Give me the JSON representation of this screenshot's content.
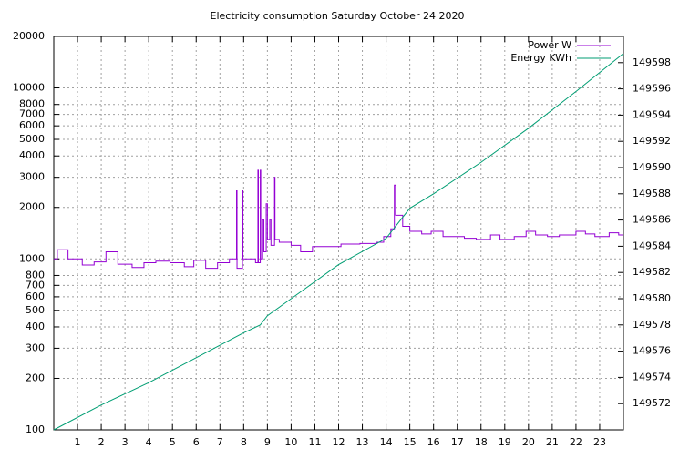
{
  "chart_data": {
    "type": "line",
    "title": "Electricity consumption Saturday October 24 2020",
    "xlim": [
      0,
      24
    ],
    "xticks": [
      1,
      2,
      3,
      4,
      5,
      6,
      7,
      8,
      9,
      10,
      11,
      12,
      13,
      14,
      15,
      16,
      17,
      18,
      19,
      20,
      21,
      22,
      23
    ],
    "ylim": [
      100,
      20000
    ],
    "yticks": [
      100,
      200,
      300,
      400,
      500,
      600,
      700,
      800,
      1000,
      2000,
      3000,
      4000,
      5000,
      6000,
      7000,
      8000,
      10000,
      20000
    ],
    "y_log": true,
    "y2lim": [
      149570,
      149600
    ],
    "y2ticks": [
      149572,
      149574,
      149576,
      149578,
      149580,
      149582,
      149584,
      149586,
      149588,
      149590,
      149592,
      149594,
      149596,
      149598
    ],
    "grid": true,
    "legend": "top-right",
    "series": [
      {
        "name": "Power W",
        "color": "#9400d3",
        "x": [
          0,
          0.15,
          0.15,
          0.6,
          0.6,
          1.2,
          1.2,
          1.7,
          1.7,
          2.2,
          2.2,
          2.7,
          2.7,
          3.3,
          3.3,
          3.8,
          3.8,
          4.3,
          4.3,
          4.9,
          4.9,
          5.5,
          5.5,
          5.9,
          5.9,
          6.4,
          6.4,
          6.9,
          6.9,
          7.4,
          7.4,
          7.7,
          7.7,
          7.72,
          7.72,
          7.95,
          7.95,
          7.97,
          7.97,
          8.5,
          8.5,
          8.6,
          8.6,
          8.62,
          8.62,
          8.7,
          8.7,
          8.72,
          8.72,
          8.8,
          8.8,
          8.85,
          8.85,
          8.95,
          8.95,
          9.0,
          9.0,
          9.1,
          9.1,
          9.15,
          9.15,
          9.3,
          9.3,
          9.32,
          9.32,
          9.5,
          9.5,
          10,
          10,
          10.4,
          10.4,
          10.9,
          10.9,
          12.1,
          12.1,
          12.9,
          12.9,
          13.6,
          13.6,
          13.9,
          13.9,
          14.2,
          14.2,
          14.35,
          14.35,
          14.4,
          14.4,
          14.7,
          14.7,
          15,
          15,
          15.5,
          15.5,
          15.9,
          15.9,
          16.4,
          16.4,
          17.3,
          17.3,
          17.8,
          17.8,
          18.4,
          18.4,
          18.8,
          18.8,
          19.4,
          19.4,
          19.9,
          19.9,
          20.3,
          20.3,
          20.8,
          20.8,
          21.3,
          21.3,
          22,
          22,
          22.4,
          22.4,
          22.8,
          22.8,
          23.4,
          23.4,
          23.8,
          23.8,
          24
        ],
        "values": [
          1000,
          1000,
          1130,
          1130,
          1000,
          1000,
          920,
          920,
          960,
          960,
          1100,
          1100,
          930,
          930,
          890,
          890,
          950,
          950,
          970,
          970,
          950,
          950,
          900,
          900,
          980,
          980,
          880,
          880,
          950,
          950,
          1000,
          1000,
          2500,
          2500,
          880,
          880,
          2500,
          2500,
          1000,
          1000,
          950,
          950,
          3300,
          3300,
          950,
          950,
          3300,
          3300,
          1000,
          1000,
          1700,
          1700,
          1100,
          1100,
          2100,
          2100,
          1300,
          1300,
          1700,
          1700,
          1200,
          1200,
          3000,
          3000,
          1300,
          1300,
          1250,
          1250,
          1200,
          1200,
          1100,
          1100,
          1180,
          1180,
          1220,
          1220,
          1230,
          1230,
          1250,
          1250,
          1350,
          1350,
          1500,
          1500,
          2700,
          2700,
          1800,
          1800,
          1550,
          1550,
          1450,
          1450,
          1400,
          1400,
          1450,
          1450,
          1350,
          1350,
          1320,
          1320,
          1300,
          1300,
          1380,
          1380,
          1300,
          1300,
          1350,
          1350,
          1450,
          1450,
          1380,
          1380,
          1350,
          1350,
          1380,
          1380,
          1450,
          1450,
          1400,
          1400,
          1350,
          1350,
          1420,
          1420,
          1380,
          1380
        ]
      },
      {
        "name": "Energy KWh",
        "color": "#009e73",
        "axis": "y2",
        "x": [
          0,
          2,
          4,
          6,
          8,
          8.7,
          9,
          10,
          12,
          14,
          15,
          16,
          18,
          20,
          22,
          24
        ],
        "values": [
          149570,
          149571.9,
          149573.6,
          149575.5,
          149577.4,
          149578,
          149578.7,
          149580,
          149582.6,
          149584.6,
          149586.9,
          149588,
          149590.4,
          149593,
          149595.8,
          149598.7
        ]
      }
    ]
  }
}
